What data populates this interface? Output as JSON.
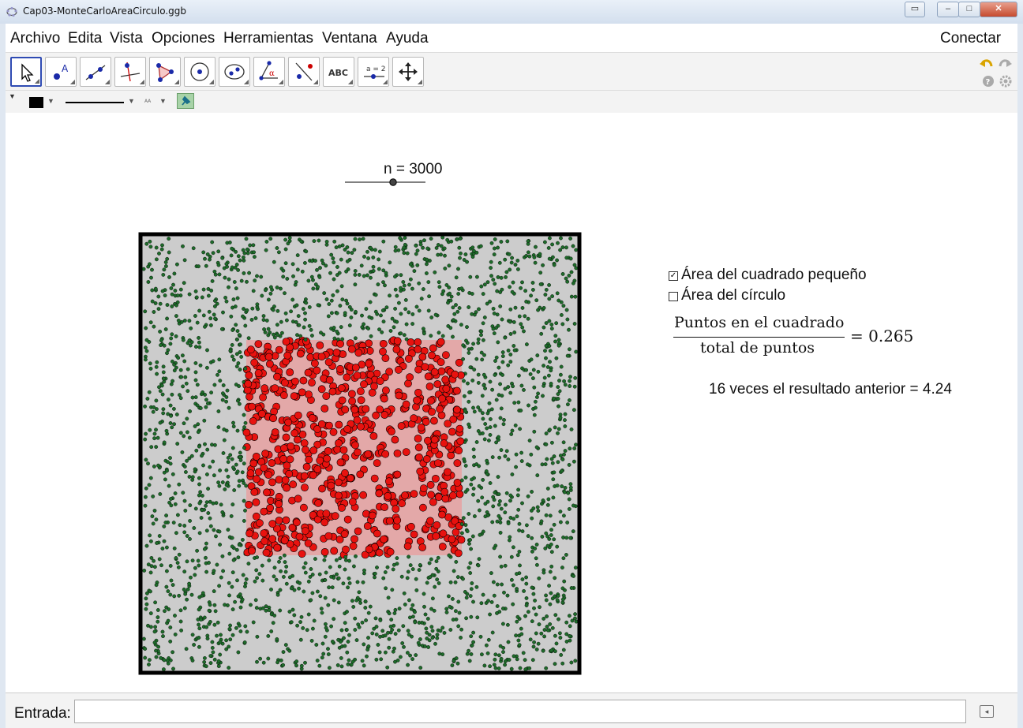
{
  "window": {
    "title": "Cap03-MonteCarloAreaCirculo.ggb",
    "buttons": [
      "restore-icon",
      "minimize-icon",
      "maximize-icon",
      "close-icon"
    ]
  },
  "menubar": {
    "items": [
      "Archivo",
      "Edita",
      "Vista",
      "Opciones",
      "Herramientas",
      "Ventana",
      "Ayuda"
    ],
    "right": "Conectar"
  },
  "toolbar": {
    "tools": [
      "move-tool-icon",
      "point-tool-icon",
      "line-tool-icon",
      "perpendicular-tool-icon",
      "polygon-tool-icon",
      "circle-tool-icon",
      "ellipse-tool-icon",
      "angle-tool-icon",
      "reflect-tool-icon",
      "text-tool-icon",
      "slider-tool-icon",
      "move-view-tool-icon"
    ],
    "text_tool_label": "ABC",
    "slider_tool_label": "a = 2",
    "accent": "#2f4bb3"
  },
  "graphics": {
    "slider_label": "n = 3000",
    "slider_value": 3000,
    "checkbox_square_label": "Área del cuadrado pequeño",
    "checkbox_square_checked": true,
    "checkbox_circle_label": "Área del círculo",
    "checkbox_circle_checked": false,
    "fraction_numerator": "Puntos en el cuadrado",
    "fraction_denominator": "total de puntos",
    "fraction_result": "= 0.265",
    "result_text": "16 veces  el resultado anterior  = 4.24",
    "colors": {
      "outside_points": "#1e6b2a",
      "inside_points": "#e8120f",
      "big_square_fill": "#cccccc",
      "small_square_fill": "#e3a8a8"
    }
  },
  "inputbar": {
    "label": "Entrada:",
    "value": ""
  }
}
